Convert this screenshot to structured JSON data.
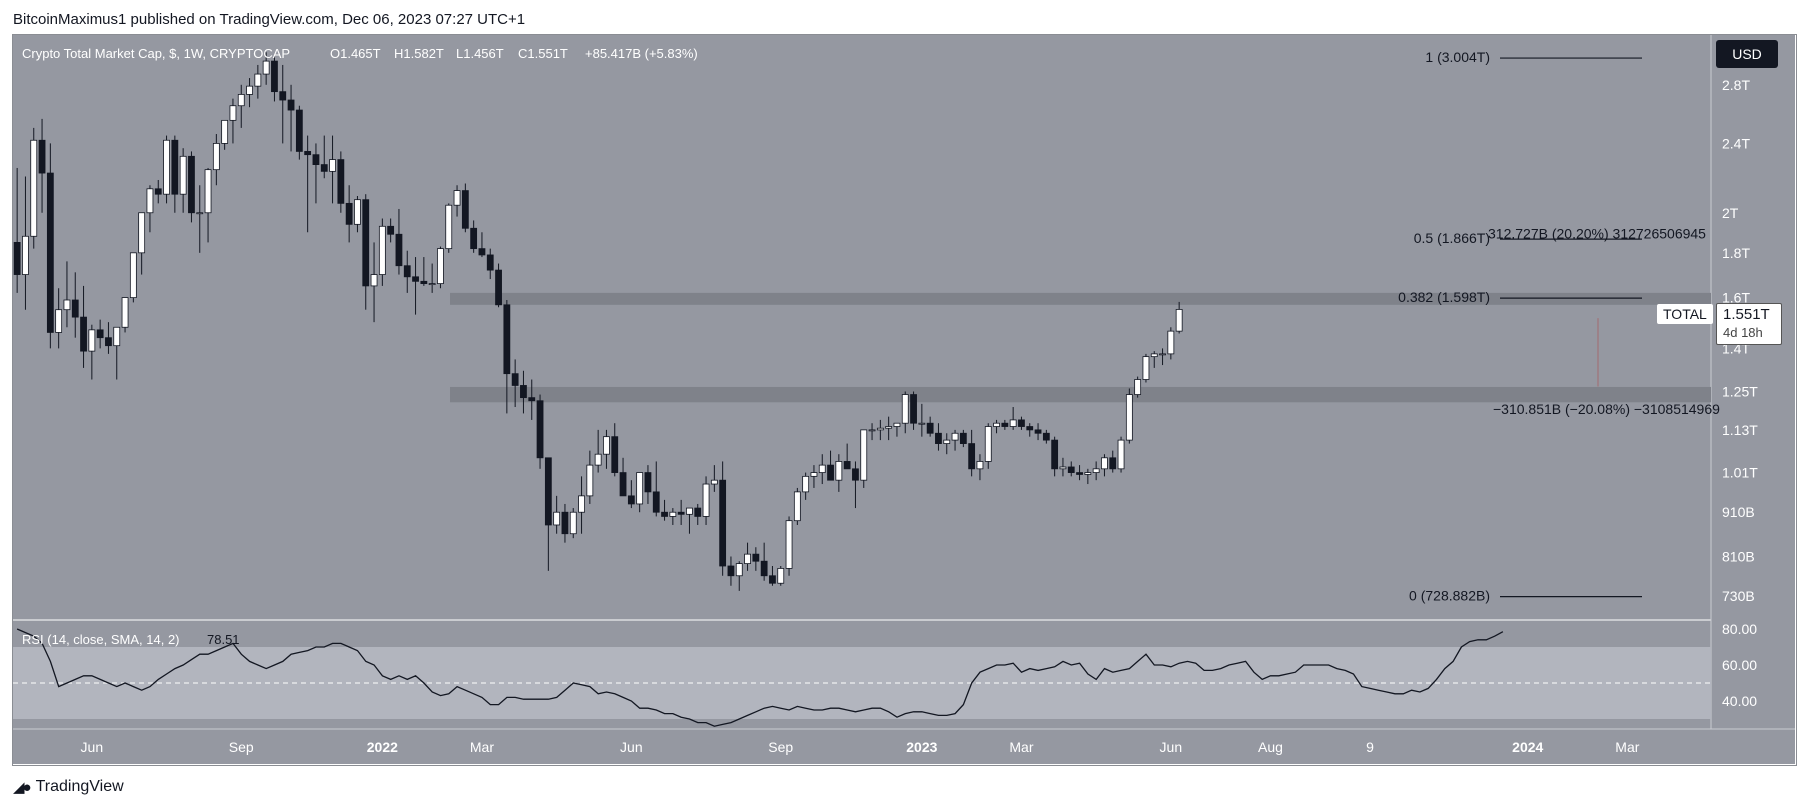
{
  "publish_line": "BitcoinMaximus1 published on TradingView.com, Dec 06, 2023 07:27 UTC+1",
  "footer_brand": "TradingView",
  "currency_button": "USD",
  "legend": {
    "symbol": "Crypto Total Market Cap, $, 1W, CRYPTOCAP",
    "open": "O1.465T",
    "high": "H1.582T",
    "low": "L1.456T",
    "close": "C1.551T",
    "change": "+85.417B (+5.83%)"
  },
  "rsi_legend": {
    "label": "RSI (14, close, SMA, 14, 2)",
    "value": "78.51"
  },
  "badges": {
    "ticker": "TOTAL",
    "last_price": "1.551T",
    "countdown": "4d 18h"
  },
  "colors": {
    "background": "#9598a1",
    "rsi_band": "#b2b5be",
    "resistance_zone": "#7f828a",
    "bull_candle": "#ffffff",
    "bear_candle": "#131722",
    "axis_text": "#ffffff",
    "line": "#131722"
  },
  "chart_data": [
    {
      "type": "candlestick",
      "title": "Crypto Total Market Cap, $, 1W, CRYPTOCAP",
      "scale": "log",
      "y_unit": "USD (B = billion, T = trillion)",
      "ylim": [
        700,
        3150
      ],
      "y_ticks": [
        "2.8T",
        "2.4T",
        "2T",
        "1.8T",
        "1.6T",
        "1.4T",
        "1.25T",
        "1.13T",
        "1.01T",
        "910B",
        "810B",
        "730B"
      ],
      "y_tick_values": [
        2800,
        2400,
        2000,
        1800,
        1600,
        1400,
        1250,
        1130,
        1010,
        910,
        810,
        730
      ],
      "x_ticks": [
        "Jun",
        "Sep",
        "2022",
        "Mar",
        "Jun",
        "Sep",
        "2023",
        "Mar",
        "Jun",
        "Aug",
        "9",
        "2024",
        "Mar"
      ],
      "x_tick_index": [
        9,
        27,
        44,
        56,
        74,
        92,
        109,
        121,
        139,
        151,
        163,
        182,
        194
      ],
      "candles": [
        {
          "o": 1850,
          "h": 2250,
          "l": 1620,
          "c": 1700
        },
        {
          "o": 1700,
          "h": 2200,
          "l": 1550,
          "c": 1880
        },
        {
          "o": 1880,
          "h": 2500,
          "l": 1820,
          "c": 2420
        },
        {
          "o": 2420,
          "h": 2560,
          "l": 2000,
          "c": 2220
        },
        {
          "o": 2220,
          "h": 2400,
          "l": 1400,
          "c": 1460
        },
        {
          "o": 1460,
          "h": 1640,
          "l": 1400,
          "c": 1550
        },
        {
          "o": 1550,
          "h": 1760,
          "l": 1480,
          "c": 1590
        },
        {
          "o": 1590,
          "h": 1710,
          "l": 1440,
          "c": 1520
        },
        {
          "o": 1520,
          "h": 1650,
          "l": 1330,
          "c": 1390
        },
        {
          "o": 1390,
          "h": 1490,
          "l": 1290,
          "c": 1470
        },
        {
          "o": 1470,
          "h": 1510,
          "l": 1400,
          "c": 1440
        },
        {
          "o": 1440,
          "h": 1500,
          "l": 1380,
          "c": 1410
        },
        {
          "o": 1410,
          "h": 1480,
          "l": 1290,
          "c": 1480
        },
        {
          "o": 1480,
          "h": 1600,
          "l": 1460,
          "c": 1600
        },
        {
          "o": 1600,
          "h": 1800,
          "l": 1580,
          "c": 1800
        },
        {
          "o": 1800,
          "h": 2000,
          "l": 1700,
          "c": 2000
        },
        {
          "o": 2000,
          "h": 2150,
          "l": 1900,
          "c": 2130
        },
        {
          "o": 2130,
          "h": 2180,
          "l": 2050,
          "c": 2100
        },
        {
          "o": 2100,
          "h": 2450,
          "l": 2050,
          "c": 2420
        },
        {
          "o": 2420,
          "h": 2450,
          "l": 2000,
          "c": 2100
        },
        {
          "o": 2100,
          "h": 2370,
          "l": 2000,
          "c": 2320
        },
        {
          "o": 2320,
          "h": 2350,
          "l": 1950,
          "c": 2000
        },
        {
          "o": 2000,
          "h": 2150,
          "l": 1800,
          "c": 2000
        },
        {
          "o": 2000,
          "h": 2250,
          "l": 1850,
          "c": 2240
        },
        {
          "o": 2240,
          "h": 2460,
          "l": 2150,
          "c": 2400
        },
        {
          "o": 2400,
          "h": 2550,
          "l": 2360,
          "c": 2550
        },
        {
          "o": 2550,
          "h": 2700,
          "l": 2400,
          "c": 2650
        },
        {
          "o": 2650,
          "h": 2800,
          "l": 2500,
          "c": 2730
        },
        {
          "o": 2730,
          "h": 2850,
          "l": 2640,
          "c": 2790
        },
        {
          "o": 2790,
          "h": 2950,
          "l": 2700,
          "c": 2880
        },
        {
          "o": 2880,
          "h": 3050,
          "l": 2800,
          "c": 2980
        },
        {
          "o": 2980,
          "h": 3020,
          "l": 2680,
          "c": 2750
        },
        {
          "o": 2750,
          "h": 2950,
          "l": 2400,
          "c": 2690
        },
        {
          "o": 2690,
          "h": 2800,
          "l": 2350,
          "c": 2620
        },
        {
          "o": 2620,
          "h": 2650,
          "l": 2300,
          "c": 2350
        },
        {
          "o": 2350,
          "h": 2450,
          "l": 1900,
          "c": 2330
        },
        {
          "o": 2330,
          "h": 2400,
          "l": 2050,
          "c": 2270
        },
        {
          "o": 2270,
          "h": 2450,
          "l": 2190,
          "c": 2230
        },
        {
          "o": 2230,
          "h": 2450,
          "l": 2050,
          "c": 2300
        },
        {
          "o": 2300,
          "h": 2350,
          "l": 2000,
          "c": 2050
        },
        {
          "o": 2050,
          "h": 2150,
          "l": 1850,
          "c": 1940
        },
        {
          "o": 1940,
          "h": 2090,
          "l": 1900,
          "c": 2070
        },
        {
          "o": 2070,
          "h": 2100,
          "l": 1550,
          "c": 1650
        },
        {
          "o": 1650,
          "h": 1850,
          "l": 1500,
          "c": 1700
        },
        {
          "o": 1700,
          "h": 1970,
          "l": 1650,
          "c": 1930
        },
        {
          "o": 1930,
          "h": 1970,
          "l": 1850,
          "c": 1890
        },
        {
          "o": 1890,
          "h": 2020,
          "l": 1700,
          "c": 1740
        },
        {
          "o": 1740,
          "h": 1810,
          "l": 1620,
          "c": 1690
        },
        {
          "o": 1690,
          "h": 1780,
          "l": 1530,
          "c": 1670
        },
        {
          "o": 1670,
          "h": 1780,
          "l": 1650,
          "c": 1660
        },
        {
          "o": 1660,
          "h": 1750,
          "l": 1620,
          "c": 1660
        },
        {
          "o": 1660,
          "h": 1830,
          "l": 1640,
          "c": 1820
        },
        {
          "o": 1820,
          "h": 2050,
          "l": 1800,
          "c": 2040
        },
        {
          "o": 2040,
          "h": 2150,
          "l": 1980,
          "c": 2120
        },
        {
          "o": 2120,
          "h": 2160,
          "l": 1900,
          "c": 1920
        },
        {
          "o": 1920,
          "h": 1960,
          "l": 1800,
          "c": 1820
        },
        {
          "o": 1820,
          "h": 1900,
          "l": 1780,
          "c": 1790
        },
        {
          "o": 1790,
          "h": 1820,
          "l": 1680,
          "c": 1720
        },
        {
          "o": 1720,
          "h": 1750,
          "l": 1560,
          "c": 1570
        },
        {
          "o": 1570,
          "h": 1590,
          "l": 1180,
          "c": 1310
        },
        {
          "o": 1310,
          "h": 1360,
          "l": 1200,
          "c": 1270
        },
        {
          "o": 1270,
          "h": 1320,
          "l": 1180,
          "c": 1230
        },
        {
          "o": 1230,
          "h": 1290,
          "l": 1160,
          "c": 1220
        },
        {
          "o": 1220,
          "h": 1240,
          "l": 1020,
          "c": 1050
        },
        {
          "o": 1050,
          "h": 1050,
          "l": 780,
          "c": 880
        },
        {
          "o": 880,
          "h": 950,
          "l": 860,
          "c": 910
        },
        {
          "o": 910,
          "h": 930,
          "l": 840,
          "c": 860
        },
        {
          "o": 860,
          "h": 920,
          "l": 850,
          "c": 910
        },
        {
          "o": 910,
          "h": 1000,
          "l": 860,
          "c": 950
        },
        {
          "o": 950,
          "h": 1070,
          "l": 930,
          "c": 1030
        },
        {
          "o": 1030,
          "h": 1130,
          "l": 1010,
          "c": 1060
        },
        {
          "o": 1060,
          "h": 1130,
          "l": 1020,
          "c": 1110
        },
        {
          "o": 1110,
          "h": 1150,
          "l": 1000,
          "c": 1010
        },
        {
          "o": 1010,
          "h": 1050,
          "l": 950,
          "c": 950
        },
        {
          "o": 950,
          "h": 990,
          "l": 920,
          "c": 930
        },
        {
          "o": 930,
          "h": 1010,
          "l": 910,
          "c": 1010
        },
        {
          "o": 1010,
          "h": 1030,
          "l": 930,
          "c": 960
        },
        {
          "o": 960,
          "h": 1040,
          "l": 900,
          "c": 910
        },
        {
          "o": 910,
          "h": 940,
          "l": 890,
          "c": 900
        },
        {
          "o": 900,
          "h": 920,
          "l": 880,
          "c": 910
        },
        {
          "o": 910,
          "h": 940,
          "l": 880,
          "c": 905
        },
        {
          "o": 905,
          "h": 920,
          "l": 860,
          "c": 920
        },
        {
          "o": 920,
          "h": 930,
          "l": 880,
          "c": 900
        },
        {
          "o": 900,
          "h": 1000,
          "l": 880,
          "c": 980
        },
        {
          "o": 980,
          "h": 1030,
          "l": 960,
          "c": 990
        },
        {
          "o": 990,
          "h": 1040,
          "l": 770,
          "c": 790
        },
        {
          "o": 790,
          "h": 810,
          "l": 750,
          "c": 770
        },
        {
          "o": 770,
          "h": 800,
          "l": 740,
          "c": 795
        },
        {
          "o": 795,
          "h": 840,
          "l": 780,
          "c": 815
        },
        {
          "o": 815,
          "h": 830,
          "l": 780,
          "c": 800
        },
        {
          "o": 800,
          "h": 840,
          "l": 760,
          "c": 770
        },
        {
          "o": 770,
          "h": 790,
          "l": 750,
          "c": 755
        },
        {
          "o": 755,
          "h": 790,
          "l": 750,
          "c": 785
        },
        {
          "o": 785,
          "h": 900,
          "l": 770,
          "c": 890
        },
        {
          "o": 890,
          "h": 970,
          "l": 880,
          "c": 960
        },
        {
          "o": 960,
          "h": 1010,
          "l": 940,
          "c": 1000
        },
        {
          "o": 1000,
          "h": 1030,
          "l": 970,
          "c": 1010
        },
        {
          "o": 1010,
          "h": 1060,
          "l": 980,
          "c": 1030
        },
        {
          "o": 1030,
          "h": 1070,
          "l": 990,
          "c": 990
        },
        {
          "o": 990,
          "h": 1060,
          "l": 960,
          "c": 1040
        },
        {
          "o": 1040,
          "h": 1090,
          "l": 1030,
          "c": 1020
        },
        {
          "o": 1020,
          "h": 1040,
          "l": 920,
          "c": 990
        },
        {
          "o": 990,
          "h": 1130,
          "l": 970,
          "c": 1130
        },
        {
          "o": 1130,
          "h": 1150,
          "l": 1100,
          "c": 1130
        },
        {
          "o": 1130,
          "h": 1160,
          "l": 1100,
          "c": 1135
        },
        {
          "o": 1135,
          "h": 1170,
          "l": 1100,
          "c": 1140
        },
        {
          "o": 1140,
          "h": 1150,
          "l": 1110,
          "c": 1150
        },
        {
          "o": 1150,
          "h": 1250,
          "l": 1120,
          "c": 1240
        },
        {
          "o": 1240,
          "h": 1250,
          "l": 1130,
          "c": 1150
        },
        {
          "o": 1150,
          "h": 1210,
          "l": 1110,
          "c": 1150
        },
        {
          "o": 1150,
          "h": 1170,
          "l": 1110,
          "c": 1120
        },
        {
          "o": 1120,
          "h": 1150,
          "l": 1070,
          "c": 1090
        },
        {
          "o": 1090,
          "h": 1120,
          "l": 1060,
          "c": 1100
        },
        {
          "o": 1100,
          "h": 1130,
          "l": 1070,
          "c": 1120
        },
        {
          "o": 1120,
          "h": 1130,
          "l": 1080,
          "c": 1090
        },
        {
          "o": 1090,
          "h": 1130,
          "l": 1000,
          "c": 1020
        },
        {
          "o": 1020,
          "h": 1060,
          "l": 990,
          "c": 1040
        },
        {
          "o": 1040,
          "h": 1150,
          "l": 1020,
          "c": 1140
        },
        {
          "o": 1140,
          "h": 1160,
          "l": 1120,
          "c": 1150
        },
        {
          "o": 1150,
          "h": 1160,
          "l": 1130,
          "c": 1140
        },
        {
          "o": 1140,
          "h": 1200,
          "l": 1130,
          "c": 1160
        },
        {
          "o": 1160,
          "h": 1170,
          "l": 1130,
          "c": 1140
        },
        {
          "o": 1140,
          "h": 1150,
          "l": 1110,
          "c": 1130
        },
        {
          "o": 1130,
          "h": 1150,
          "l": 1100,
          "c": 1120
        },
        {
          "o": 1120,
          "h": 1130,
          "l": 1090,
          "c": 1100
        },
        {
          "o": 1100,
          "h": 1110,
          "l": 1000,
          "c": 1020
        },
        {
          "o": 1020,
          "h": 1050,
          "l": 1000,
          "c": 1025
        },
        {
          "o": 1025,
          "h": 1040,
          "l": 1000,
          "c": 1010
        },
        {
          "o": 1010,
          "h": 1030,
          "l": 990,
          "c": 1005
        },
        {
          "o": 1005,
          "h": 1020,
          "l": 980,
          "c": 1010
        },
        {
          "o": 1010,
          "h": 1040,
          "l": 990,
          "c": 1020
        },
        {
          "o": 1020,
          "h": 1060,
          "l": 1000,
          "c": 1050
        },
        {
          "o": 1050,
          "h": 1070,
          "l": 1010,
          "c": 1020
        },
        {
          "o": 1020,
          "h": 1110,
          "l": 1010,
          "c": 1100
        },
        {
          "o": 1100,
          "h": 1260,
          "l": 1090,
          "c": 1240
        },
        {
          "o": 1240,
          "h": 1300,
          "l": 1230,
          "c": 1290
        },
        {
          "o": 1290,
          "h": 1380,
          "l": 1280,
          "c": 1370
        },
        {
          "o": 1370,
          "h": 1390,
          "l": 1330,
          "c": 1380
        },
        {
          "o": 1380,
          "h": 1400,
          "l": 1340,
          "c": 1380
        },
        {
          "o": 1380,
          "h": 1480,
          "l": 1360,
          "c": 1465
        },
        {
          "o": 1465,
          "h": 1582,
          "l": 1456,
          "c": 1551
        }
      ],
      "resistance_zones": [
        {
          "label": "upper",
          "from": 1570,
          "to": 1620
        },
        {
          "label": "lower",
          "from": 1215,
          "to": 1265
        }
      ],
      "fibonacci": [
        {
          "label": "1 (3.004T)",
          "value": 3004
        },
        {
          "label": "0.5 (1.866T)",
          "value": 1866
        },
        {
          "label": "0.382 (1.598T)",
          "value": 1598
        },
        {
          "label": "0 (728.882B)",
          "value": 728.882
        }
      ],
      "measure_annotations": [
        {
          "label": "312.727B (20.20%) 312726506945",
          "value": 1890
        },
        {
          "label": "−310.851B (−20.08%) −3108514969",
          "value": 1190
        }
      ]
    },
    {
      "type": "line",
      "title": "RSI (14, close, SMA, 14, 2)",
      "ylim": [
        25,
        85
      ],
      "y_ticks": [
        "80.00",
        "60.00",
        "40.00"
      ],
      "y_tick_values": [
        80,
        60,
        40
      ],
      "band": [
        30,
        70
      ],
      "midline": 50,
      "last_value": 78.51,
      "values": [
        80,
        78,
        76,
        72,
        62,
        48,
        50,
        52,
        54,
        54,
        52,
        50,
        48,
        50,
        48,
        46,
        48,
        52,
        55,
        58,
        60,
        63,
        66,
        66,
        68,
        70,
        72,
        66,
        62,
        60,
        58,
        60,
        62,
        66,
        67,
        68,
        70,
        70,
        72,
        72,
        70,
        68,
        62,
        60,
        54,
        52,
        54,
        52,
        54,
        50,
        45,
        43,
        44,
        48,
        46,
        44,
        42,
        38,
        38,
        42,
        42,
        41,
        41,
        41,
        41,
        42,
        46,
        50,
        49,
        48,
        44,
        45,
        44,
        42,
        40,
        36,
        36,
        35,
        33,
        33,
        31,
        30,
        28,
        28,
        26,
        27,
        28,
        30,
        32,
        34,
        36,
        37,
        36,
        35,
        37,
        36,
        35,
        35,
        36,
        36,
        35,
        34,
        35,
        36,
        36,
        34,
        31,
        33,
        34,
        34,
        33,
        32,
        32,
        33,
        38,
        50,
        56,
        58,
        60,
        60,
        61,
        56,
        58,
        57,
        58,
        59,
        62,
        60,
        61,
        55,
        52,
        58,
        56,
        57,
        58,
        62,
        66,
        60,
        60,
        59,
        61,
        62,
        61,
        57,
        57,
        58,
        60,
        61,
        62,
        56,
        52,
        54,
        54,
        55,
        56,
        60,
        60,
        60,
        60,
        58,
        57,
        55,
        48,
        47,
        46,
        45,
        44,
        44,
        46,
        45,
        47,
        52,
        58,
        62,
        70,
        73,
        74,
        74,
        76,
        78.51
      ]
    }
  ]
}
